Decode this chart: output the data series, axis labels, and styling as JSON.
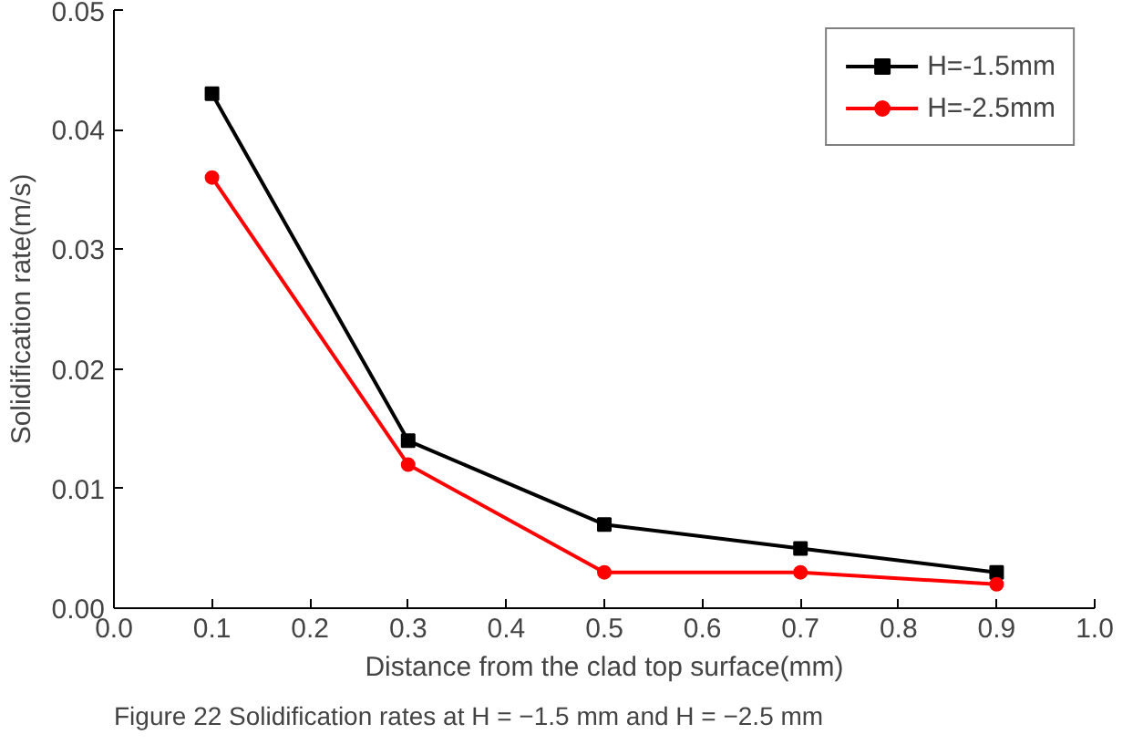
{
  "chart_data": {
    "type": "line",
    "xlabel": "Distance from the clad top surface(mm)",
    "ylabel": "Solidification rate(m/s)",
    "x": [
      0.1,
      0.3,
      0.5,
      0.7,
      0.9
    ],
    "series": [
      {
        "name": "H=-1.5mm",
        "color": "#000000",
        "marker": "square",
        "values": [
          0.043,
          0.014,
          0.007,
          0.005,
          0.003
        ]
      },
      {
        "name": "H=-2.5mm",
        "color": "#ff0000",
        "marker": "circle",
        "values": [
          0.036,
          0.012,
          0.003,
          0.003,
          0.002
        ]
      }
    ],
    "xlim": [
      0.0,
      1.0
    ],
    "xticks": [
      {
        "value": 0.0,
        "label": "0.0"
      },
      0.1,
      0.2,
      0.3,
      0.4,
      0.5,
      0.6,
      0.7,
      0.8,
      0.9,
      {
        "value": 1.0,
        "label": "1.0"
      }
    ],
    "ylim": [
      0.0,
      0.05
    ],
    "yticks": [
      {
        "value": 0.0,
        "label": "0.00"
      },
      {
        "value": 0.01,
        "label": "0.01"
      },
      {
        "value": 0.02,
        "label": "0.02"
      },
      {
        "value": 0.03,
        "label": "0.03"
      },
      {
        "value": 0.04,
        "label": "0.04"
      },
      {
        "value": 0.05,
        "label": "0.05"
      }
    ],
    "grid": false,
    "legend": "top right",
    "line_style": "solid",
    "annotations": [
      "Figure 22  Solidification rates at H = −1.5 mm and H = −2.5 mm"
    ]
  }
}
